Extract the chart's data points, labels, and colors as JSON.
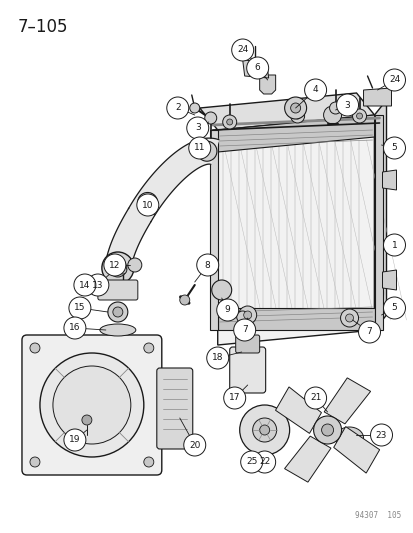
{
  "title": "7–105",
  "watermark": "94307  105",
  "bg": "#ffffff",
  "dark": "#1a1a1a",
  "gray": "#888888",
  "lgray": "#cccccc",
  "figsize": [
    4.14,
    5.33
  ],
  "dpi": 100
}
